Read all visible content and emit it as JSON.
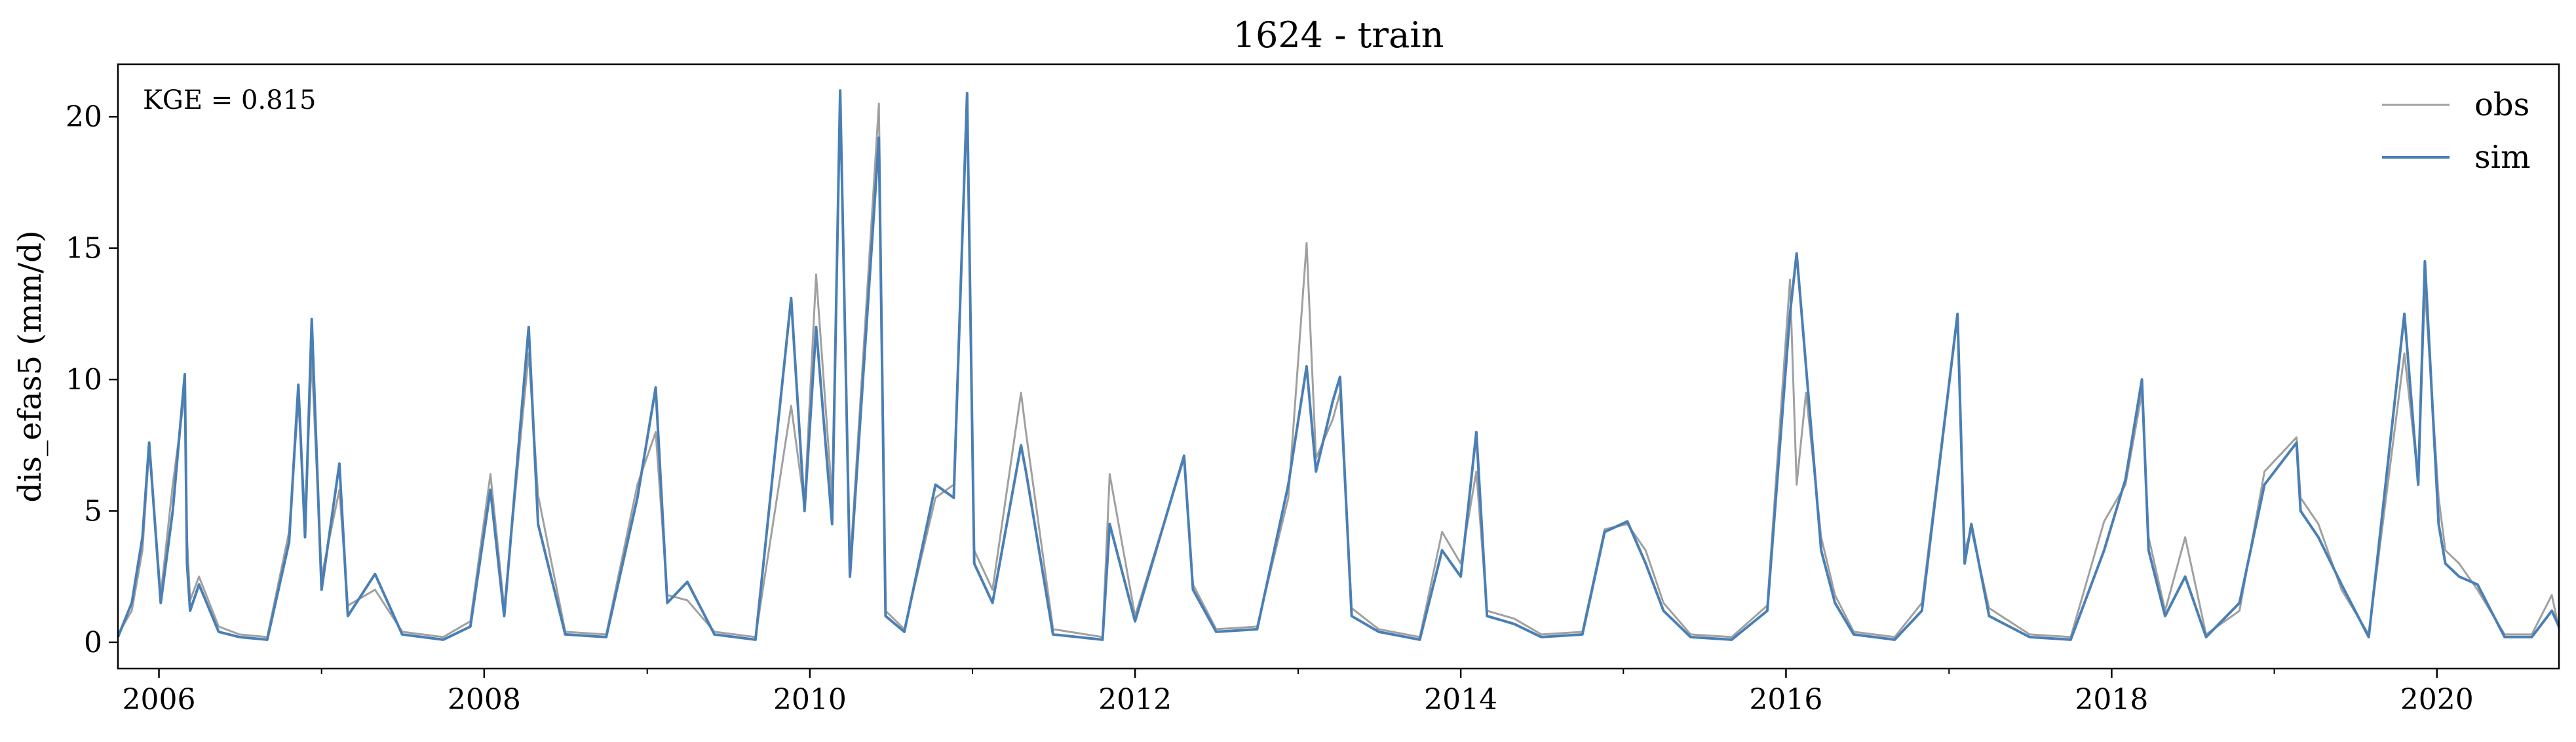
{
  "chart_data": {
    "type": "line",
    "title": "1624 - train",
    "xlabel": "",
    "ylabel": "dis_efas5 (mm/d)",
    "annotation": "KGE = 0.815",
    "xlim": [
      "2005-10-01",
      "2020-10-01"
    ],
    "ylim": [
      -1,
      22
    ],
    "x_ticks": [
      "2006",
      "2008",
      "2010",
      "2012",
      "2014",
      "2016",
      "2018",
      "2020"
    ],
    "y_ticks": [
      "0",
      "5",
      "10",
      "15",
      "20"
    ],
    "grid": false,
    "legend_position": "top-right",
    "colors": {
      "obs": "#a0a0a0",
      "sim": "#4a7fb5"
    },
    "series": [
      {
        "name": "obs",
        "x": [
          "2005-10-01",
          "2005-11-01",
          "2005-11-25",
          "2005-12-10",
          "2006-01-05",
          "2006-02-01",
          "2006-02-28",
          "2006-03-05",
          "2006-03-12",
          "2006-04-01",
          "2006-05-15",
          "2006-07-01",
          "2006-09-01",
          "2006-10-20",
          "2006-11-10",
          "2006-11-25",
          "2006-12-10",
          "2007-01-01",
          "2007-02-10",
          "2007-03-01",
          "2007-05-01",
          "2007-07-01",
          "2007-10-01",
          "2007-12-01",
          "2008-01-15",
          "2008-02-15",
          "2008-04-10",
          "2008-05-01",
          "2008-07-01",
          "2008-10-01",
          "2008-12-10",
          "2009-01-20",
          "2009-02-15",
          "2009-04-01",
          "2009-06-01",
          "2009-09-01",
          "2009-11-20",
          "2009-12-20",
          "2010-01-15",
          "2010-02-20",
          "2010-03-10",
          "2010-04-01",
          "2010-06-05",
          "2010-06-20",
          "2010-08-01",
          "2010-10-10",
          "2010-11-20",
          "2010-12-20",
          "2011-01-05",
          "2011-02-15",
          "2011-04-20",
          "2011-05-01",
          "2011-07-01",
          "2011-10-20",
          "2011-11-05",
          "2012-01-01",
          "2012-04-20",
          "2012-05-10",
          "2012-07-01",
          "2012-10-01",
          "2012-12-10",
          "2013-01-20",
          "2013-02-10",
          "2013-03-20",
          "2013-04-05",
          "2013-05-01",
          "2013-07-01",
          "2013-10-01",
          "2013-11-20",
          "2014-01-01",
          "2014-02-05",
          "2014-03-01",
          "2014-05-01",
          "2014-07-01",
          "2014-10-01",
          "2014-11-20",
          "2015-01-10",
          "2015-02-20",
          "2015-04-01",
          "2015-06-01",
          "2015-09-01",
          "2015-11-20",
          "2016-01-10",
          "2016-01-25",
          "2016-02-15",
          "2016-03-20",
          "2016-04-20",
          "2016-06-01",
          "2016-09-01",
          "2016-11-01",
          "2017-01-20",
          "2017-02-05",
          "2017-02-20",
          "2017-04-01",
          "2017-07-01",
          "2017-10-01",
          "2017-12-15",
          "2018-02-01",
          "2018-03-10",
          "2018-03-25",
          "2018-05-01",
          "2018-06-15",
          "2018-08-01",
          "2018-10-15",
          "2018-12-10",
          "2019-02-20",
          "2019-03-01",
          "2019-04-10",
          "2019-06-01",
          "2019-08-01",
          "2019-10-20",
          "2019-11-20",
          "2019-12-05",
          "2020-01-05",
          "2020-01-20",
          "2020-02-20",
          "2020-04-01",
          "2020-06-01",
          "2020-08-01",
          "2020-09-15",
          "2020-10-01"
        ],
        "values": [
          0.3,
          1.2,
          3.5,
          7.4,
          1.8,
          6.0,
          9.5,
          4.0,
          1.6,
          2.5,
          0.6,
          0.3,
          0.2,
          4.2,
          9.2,
          4.8,
          10.8,
          2.5,
          5.8,
          1.4,
          2.0,
          0.4,
          0.2,
          0.8,
          6.4,
          1.3,
          11.0,
          5.6,
          0.4,
          0.3,
          6.0,
          8.0,
          1.8,
          1.6,
          0.4,
          0.2,
          9.0,
          5.2,
          14.0,
          5.5,
          20.8,
          2.8,
          20.5,
          1.2,
          0.5,
          5.5,
          6.0,
          20.5,
          3.5,
          2.0,
          9.5,
          8.0,
          0.5,
          0.2,
          6.4,
          1.0,
          7.0,
          2.2,
          0.5,
          0.6,
          5.5,
          15.2,
          7.0,
          8.5,
          9.5,
          1.3,
          0.5,
          0.2,
          4.2,
          3.0,
          6.5,
          1.2,
          0.9,
          0.3,
          0.4,
          4.3,
          4.5,
          3.5,
          1.5,
          0.3,
          0.2,
          1.4,
          13.8,
          6.0,
          9.5,
          4.0,
          1.8,
          0.4,
          0.2,
          1.5,
          12.5,
          3.5,
          4.3,
          1.3,
          0.3,
          0.2,
          4.6,
          6.0,
          9.5,
          4.0,
          1.2,
          4.0,
          0.3,
          1.2,
          6.5,
          7.8,
          5.5,
          4.5,
          2.0,
          0.3,
          11.0,
          6.2,
          13.5,
          5.5,
          3.5,
          3.0,
          2.0,
          0.3,
          0.3,
          1.8,
          0.5
        ]
      },
      {
        "name": "sim",
        "x": [
          "2005-10-01",
          "2005-11-01",
          "2005-11-25",
          "2005-12-10",
          "2006-01-05",
          "2006-02-01",
          "2006-02-28",
          "2006-03-05",
          "2006-03-12",
          "2006-04-01",
          "2006-05-15",
          "2006-07-01",
          "2006-09-01",
          "2006-10-20",
          "2006-11-10",
          "2006-11-25",
          "2006-12-10",
          "2007-01-01",
          "2007-02-10",
          "2007-03-01",
          "2007-05-01",
          "2007-07-01",
          "2007-10-01",
          "2007-12-01",
          "2008-01-15",
          "2008-02-15",
          "2008-04-10",
          "2008-05-01",
          "2008-07-01",
          "2008-10-01",
          "2008-12-10",
          "2009-01-20",
          "2009-02-15",
          "2009-04-01",
          "2009-06-01",
          "2009-09-01",
          "2009-11-20",
          "2009-12-20",
          "2010-01-15",
          "2010-02-20",
          "2010-03-10",
          "2010-04-01",
          "2010-06-05",
          "2010-06-20",
          "2010-08-01",
          "2010-10-10",
          "2010-11-20",
          "2010-12-20",
          "2011-01-05",
          "2011-02-15",
          "2011-04-20",
          "2011-05-01",
          "2011-07-01",
          "2011-10-20",
          "2011-11-05",
          "2012-01-01",
          "2012-04-20",
          "2012-05-10",
          "2012-07-01",
          "2012-10-01",
          "2012-12-10",
          "2013-01-20",
          "2013-02-10",
          "2013-03-20",
          "2013-04-05",
          "2013-05-01",
          "2013-07-01",
          "2013-10-01",
          "2013-11-20",
          "2014-01-01",
          "2014-02-05",
          "2014-03-01",
          "2014-05-01",
          "2014-07-01",
          "2014-10-01",
          "2014-11-20",
          "2015-01-10",
          "2015-02-20",
          "2015-04-01",
          "2015-06-01",
          "2015-09-01",
          "2015-11-20",
          "2016-01-10",
          "2016-01-25",
          "2016-02-15",
          "2016-03-20",
          "2016-04-20",
          "2016-06-01",
          "2016-09-01",
          "2016-11-01",
          "2017-01-20",
          "2017-02-05",
          "2017-02-20",
          "2017-04-01",
          "2017-07-01",
          "2017-10-01",
          "2017-12-15",
          "2018-02-01",
          "2018-03-10",
          "2018-03-25",
          "2018-05-01",
          "2018-06-15",
          "2018-08-01",
          "2018-10-15",
          "2018-12-10",
          "2019-02-20",
          "2019-03-01",
          "2019-04-10",
          "2019-06-01",
          "2019-08-01",
          "2019-10-20",
          "2019-11-20",
          "2019-12-05",
          "2020-01-05",
          "2020-01-20",
          "2020-02-20",
          "2020-04-01",
          "2020-06-01",
          "2020-08-01",
          "2020-09-15",
          "2020-10-01"
        ],
        "values": [
          0.2,
          1.5,
          4.0,
          7.6,
          1.5,
          5.0,
          10.2,
          3.0,
          1.2,
          2.2,
          0.4,
          0.2,
          0.1,
          3.8,
          9.8,
          4.0,
          12.3,
          2.0,
          6.8,
          1.0,
          2.6,
          0.3,
          0.1,
          0.6,
          5.8,
          1.0,
          12.0,
          4.5,
          0.3,
          0.2,
          5.5,
          9.7,
          1.5,
          2.3,
          0.3,
          0.1,
          13.1,
          5.0,
          12.0,
          4.5,
          21.0,
          2.5,
          19.2,
          1.0,
          0.4,
          6.0,
          5.5,
          20.9,
          3.0,
          1.5,
          7.5,
          6.5,
          0.3,
          0.1,
          4.5,
          0.8,
          7.1,
          2.0,
          0.4,
          0.5,
          6.0,
          10.5,
          6.5,
          9.2,
          10.1,
          1.0,
          0.4,
          0.1,
          3.5,
          2.5,
          8.0,
          1.0,
          0.7,
          0.2,
          0.3,
          4.2,
          4.6,
          3.0,
          1.2,
          0.2,
          0.1,
          1.2,
          12.5,
          14.8,
          10.5,
          3.5,
          1.5,
          0.3,
          0.1,
          1.2,
          12.5,
          3.0,
          4.5,
          1.0,
          0.2,
          0.1,
          3.5,
          6.2,
          10.0,
          3.5,
          1.0,
          2.5,
          0.2,
          1.5,
          6.0,
          7.6,
          5.0,
          4.0,
          2.2,
          0.2,
          12.5,
          6.0,
          14.5,
          4.5,
          3.0,
          2.5,
          2.2,
          0.2,
          0.2,
          1.2,
          0.6
        ]
      }
    ]
  }
}
